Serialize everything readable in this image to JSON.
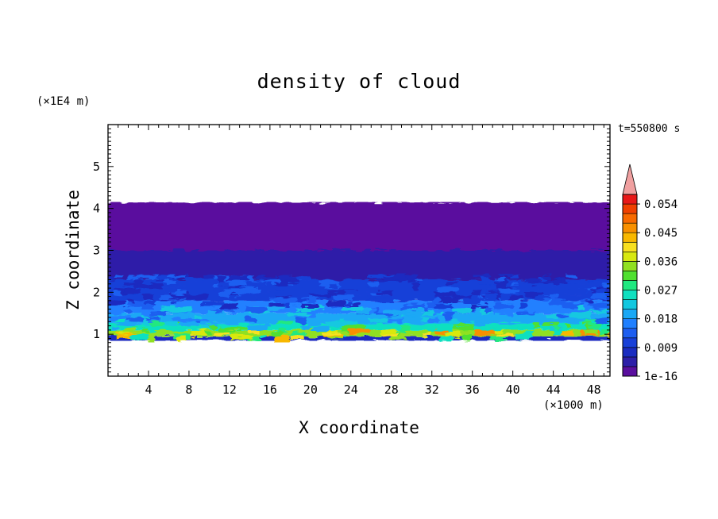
{
  "chart_data": {
    "type": "heatmap",
    "title": "density of cloud",
    "xlabel": "X coordinate",
    "ylabel": "Z coordinate",
    "x_multiplier": "(×1000 m)",
    "y_multiplier": "(×1E4 m)",
    "time_label": "t=550800 s",
    "xlim": [
      0,
      49.6
    ],
    "ylim": [
      0,
      6
    ],
    "x_ticks": [
      4,
      8,
      12,
      16,
      20,
      24,
      28,
      32,
      36,
      40,
      44,
      48
    ],
    "x_tick_labels": [
      "4",
      "8",
      "12",
      "16",
      "20",
      "24",
      "28",
      "32",
      "36",
      "40",
      "44",
      "48"
    ],
    "y_ticks": [
      1,
      2,
      3,
      4,
      5
    ],
    "y_tick_labels": [
      "1",
      "2",
      "3",
      "4",
      "5"
    ],
    "colorbar": {
      "levels": [
        1e-16,
        0.003,
        0.006,
        0.009,
        0.012,
        0.015,
        0.018,
        0.021,
        0.024,
        0.027,
        0.03,
        0.033,
        0.036,
        0.039,
        0.042,
        0.045,
        0.048,
        0.051,
        0.054,
        0.057
      ],
      "labels": [
        "1e-16",
        "0.009",
        "0.018",
        "0.027",
        "0.036",
        "0.045",
        "0.054"
      ],
      "label_values": [
        1e-16,
        0.009,
        0.018,
        0.027,
        0.036,
        0.045,
        0.054
      ],
      "colors": [
        "#5a0f9e",
        "#2d1fa8",
        "#1a2cc0",
        "#1840d8",
        "#1d5ef0",
        "#2080ff",
        "#1aa8f5",
        "#12c8e0",
        "#10e0c0",
        "#20e880",
        "#50e030",
        "#90e020",
        "#d8e810",
        "#f8e020",
        "#f8b800",
        "#f89000",
        "#f86a00",
        "#f04000",
        "#e81818",
        "#f0a0a0"
      ],
      "extend": "max"
    },
    "cloud_bands": [
      {
        "z_bottom": 0.85,
        "z_top": 0.95,
        "level": 2
      },
      {
        "z_bottom": 0.95,
        "z_top": 1.1,
        "level": 11
      },
      {
        "z_bottom": 1.1,
        "z_top": 1.25,
        "level": 8
      },
      {
        "z_bottom": 1.25,
        "z_top": 1.5,
        "level": 6
      },
      {
        "z_bottom": 1.5,
        "z_top": 1.8,
        "level": 5
      },
      {
        "z_bottom": 1.8,
        "z_top": 2.3,
        "level": 3
      },
      {
        "z_bottom": 2.3,
        "z_top": 3.0,
        "level": 1
      },
      {
        "z_bottom": 3.0,
        "z_top": 4.15,
        "level": 0
      }
    ]
  }
}
